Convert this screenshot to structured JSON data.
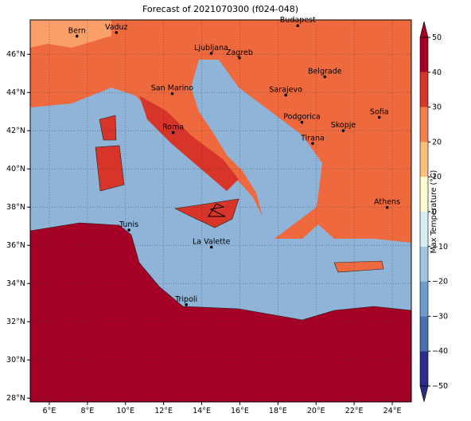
{
  "title": "Forecast of 2021070300 (f024-048)",
  "map": {
    "lon_range": [
      5,
      25
    ],
    "lat_range": [
      27.8,
      47.8
    ],
    "lon_ticks": [
      {
        "value": 6,
        "label": "6°E"
      },
      {
        "value": 8,
        "label": "8°E"
      },
      {
        "value": 10,
        "label": "10°E"
      },
      {
        "value": 12,
        "label": "12°E"
      },
      {
        "value": 14,
        "label": "14°E"
      },
      {
        "value": 16,
        "label": "16°E"
      },
      {
        "value": 18,
        "label": "18°E"
      },
      {
        "value": 20,
        "label": "20°E"
      },
      {
        "value": 22,
        "label": "22°E"
      },
      {
        "value": 24,
        "label": "24°E"
      }
    ],
    "lat_ticks": [
      {
        "value": 28,
        "label": "28°N"
      },
      {
        "value": 30,
        "label": "30°N"
      },
      {
        "value": 32,
        "label": "32°N"
      },
      {
        "value": 34,
        "label": "34°N"
      },
      {
        "value": 36,
        "label": "36°N"
      },
      {
        "value": 38,
        "label": "38°N"
      },
      {
        "value": 40,
        "label": "40°N"
      },
      {
        "value": 42,
        "label": "42°N"
      },
      {
        "value": 44,
        "label": "44°N"
      },
      {
        "value": 46,
        "label": "46°N"
      }
    ],
    "cities": [
      {
        "name": "Bern",
        "lon": 7.45,
        "lat": 46.95
      },
      {
        "name": "Vaduz",
        "lon": 9.52,
        "lat": 47.14
      },
      {
        "name": "Budapest",
        "lon": 19.04,
        "lat": 47.5
      },
      {
        "name": "Ljubljana",
        "lon": 14.5,
        "lat": 46.05
      },
      {
        "name": "Zagreb",
        "lon": 15.98,
        "lat": 45.81
      },
      {
        "name": "Belgrade",
        "lon": 20.46,
        "lat": 44.82
      },
      {
        "name": "San Marino",
        "lon": 12.45,
        "lat": 43.94
      },
      {
        "name": "Sarajevo",
        "lon": 18.41,
        "lat": 43.86
      },
      {
        "name": "Roma",
        "lon": 12.5,
        "lat": 41.9
      },
      {
        "name": "Podgorica",
        "lon": 19.26,
        "lat": 42.44
      },
      {
        "name": "Skopje",
        "lon": 21.43,
        "lat": 42.0
      },
      {
        "name": "Sofia",
        "lon": 23.32,
        "lat": 42.7
      },
      {
        "name": "Tirana",
        "lon": 19.82,
        "lat": 41.33
      },
      {
        "name": "Athens",
        "lon": 23.73,
        "lat": 37.98
      },
      {
        "name": "Tunis",
        "lon": 10.18,
        "lat": 36.8
      },
      {
        "name": "La Valette",
        "lon": 14.51,
        "lat": 35.9
      },
      {
        "name": "Tripoli",
        "lon": 13.19,
        "lat": 32.89
      }
    ]
  },
  "colorbar": {
    "label": "Max Temperature (°C)",
    "range": [
      -50,
      50
    ],
    "ticks": [
      {
        "value": -50,
        "label": "−50"
      },
      {
        "value": -40,
        "label": "−40"
      },
      {
        "value": -30,
        "label": "−30"
      },
      {
        "value": -20,
        "label": "−20"
      },
      {
        "value": -10,
        "label": "−10"
      },
      0,
      10,
      20,
      30,
      40,
      50
    ],
    "colors": [
      "#2b2c8c",
      "#4a70b0",
      "#6e9ccb",
      "#9ec5e0",
      "#d6eef5",
      "#fffbcf",
      "#fdbd7c",
      "#f4804e",
      "#d8352a",
      "#a50026"
    ]
  }
}
